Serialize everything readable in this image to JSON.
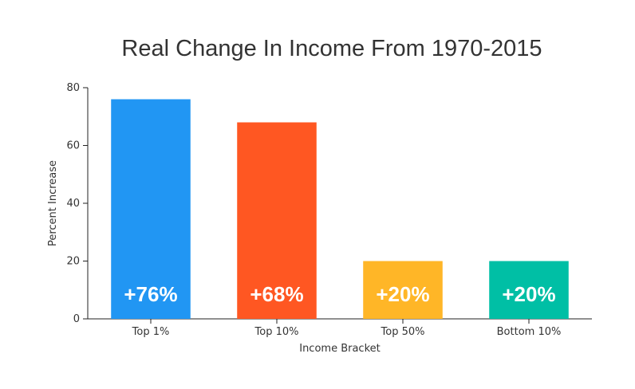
{
  "chart_data": {
    "type": "bar",
    "title": "Real Change In Income From 1970-2015",
    "xlabel": "Income Bracket",
    "ylabel": "Percent Increase",
    "categories": [
      "Top 1%",
      "Top 10%",
      "Top 50%",
      "Bottom 10%"
    ],
    "values": [
      76,
      68,
      20,
      20
    ],
    "data_labels": [
      "+76%",
      "+68%",
      "+20%",
      "+20%"
    ],
    "colors": [
      "#2196f3",
      "#ff5722",
      "#ffb627",
      "#00bfa5"
    ],
    "ylim": [
      0,
      80
    ],
    "yticks": [
      0,
      20,
      40,
      60,
      80
    ],
    "grid": false,
    "legend": "none"
  }
}
